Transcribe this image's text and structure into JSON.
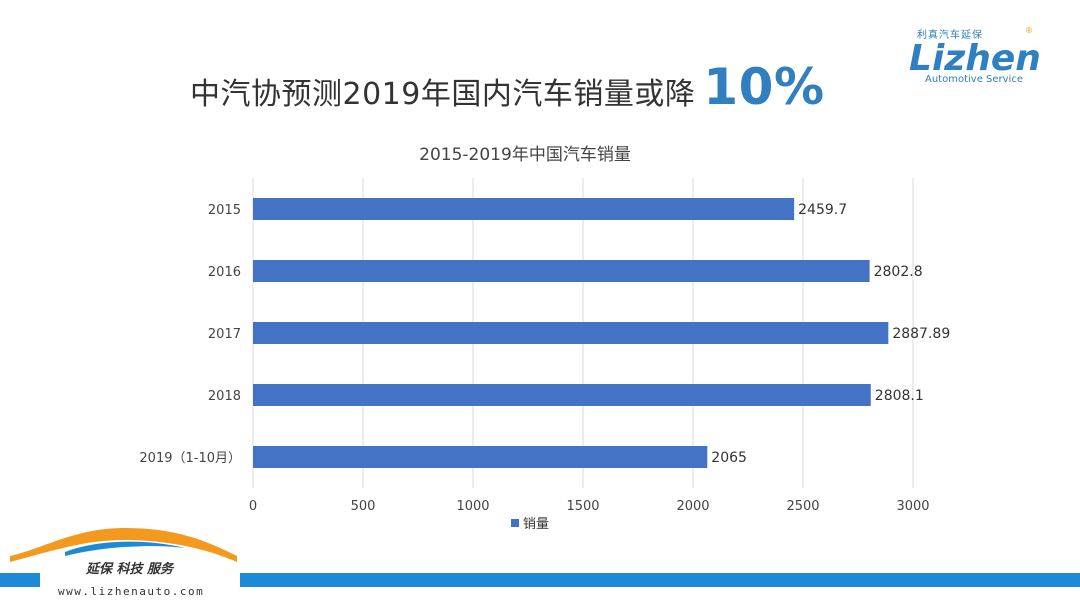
{
  "slide": {
    "title_text": "中汽协预测2019年国内汽车销量或降",
    "title_highlight": "10%"
  },
  "logo": {
    "cn_text": "利真汽车延保",
    "en_text": "Lizhen",
    "sub_text": "Automotive Service",
    "reg_mark": "®"
  },
  "footer": {
    "slogan": "延保 科技 服务",
    "url": "www.lizhenauto.com"
  },
  "colors": {
    "bar": "#4472c4",
    "accent": "#2f7fc1",
    "logo_orange": "#f39a1e",
    "footer_blue": "#1c8ad6"
  },
  "chart_data": {
    "type": "bar",
    "orientation": "horizontal",
    "title": "2015-2019年中国汽车销量",
    "categories": [
      "2015",
      "2016",
      "2017",
      "2018",
      "2019（1-10月）"
    ],
    "series": [
      {
        "name": "销量",
        "values": [
          2459.7,
          2802.8,
          2887.89,
          2808.1,
          2065
        ]
      }
    ],
    "data_labels": [
      "2459.7",
      "2802.8",
      "2887.89",
      "2808.1",
      "2065"
    ],
    "xlim": [
      0,
      3000
    ],
    "xticks": [
      0,
      500,
      1000,
      1500,
      2000,
      2500,
      3000
    ],
    "grid": true,
    "legend": "bottom"
  }
}
